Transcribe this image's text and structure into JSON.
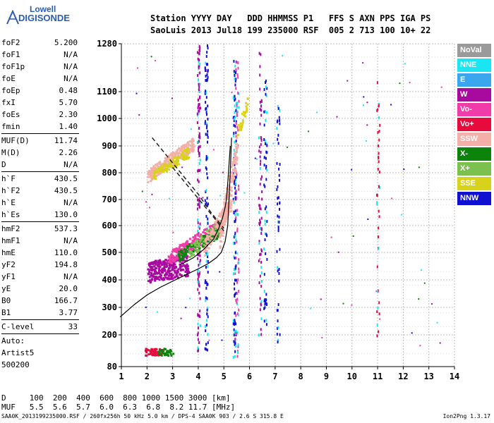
{
  "logo": {
    "top": "Lowell",
    "bottom": "DIGISONDE"
  },
  "header": {
    "line1": "Station YYYY DAY   DDD HHMMSS P1   FFS S AXN PPS IGA PS",
    "line2": "SaoLuis 2013 Jul18 199 235000 RSF  005 2 713 100 10+ 22"
  },
  "params": [
    {
      "k": "foF2",
      "v": "5.200"
    },
    {
      "k": "foF1",
      "v": "N/A"
    },
    {
      "k": "foF1p",
      "v": "N/A"
    },
    {
      "k": "foE",
      "v": "N/A"
    },
    {
      "k": "foEp",
      "v": "0.48"
    },
    {
      "k": "fxI",
      "v": "5.70"
    },
    {
      "k": "foEs",
      "v": "2.30"
    },
    {
      "k": "fmin",
      "v": "1.40"
    },
    {
      "sep": true
    },
    {
      "k": "MUF(D)",
      "v": "11.74"
    },
    {
      "k": "M(D)",
      "v": "2.26"
    },
    {
      "k": "D",
      "v": "N/A"
    },
    {
      "sep": true
    },
    {
      "k": "h`F",
      "v": "430.5"
    },
    {
      "k": "h`F2",
      "v": "430.5"
    },
    {
      "k": "h`E",
      "v": "N/A"
    },
    {
      "k": "h`Es",
      "v": "130.0"
    },
    {
      "sep": true
    },
    {
      "k": "hmF2",
      "v": "537.3"
    },
    {
      "k": "hmF1",
      "v": "N/A"
    },
    {
      "k": "hmE",
      "v": "110.0"
    },
    {
      "k": "yF2",
      "v": "194.8"
    },
    {
      "k": "yF1",
      "v": "N/A"
    },
    {
      "k": "yE",
      "v": "20.0"
    },
    {
      "k": "B0",
      "v": "166.7"
    },
    {
      "k": "B1",
      "v": "3.77"
    },
    {
      "sep": true
    },
    {
      "k": "C-level",
      "v": "33"
    },
    {
      "sep": true
    },
    {
      "text": "Auto:"
    },
    {
      "text": "Artist5"
    },
    {
      "text": "500200"
    }
  ],
  "legend": [
    {
      "label": "NoVal",
      "color": "#9a9a9a"
    },
    {
      "label": "NNE",
      "color": "#19e6f0"
    },
    {
      "label": "E",
      "color": "#3aa6ee"
    },
    {
      "label": "W",
      "color": "#a80aa0"
    },
    {
      "label": "Vo-",
      "color": "#f03ca8"
    },
    {
      "label": "Vo+",
      "color": "#e80a3c"
    },
    {
      "label": "SSW",
      "color": "#f4b0a8"
    },
    {
      "label": "X-",
      "color": "#0c840c"
    },
    {
      "label": "X+",
      "color": "#7cc050"
    },
    {
      "label": "SSE",
      "color": "#d8d21a"
    },
    {
      "label": "NNW",
      "color": "#1010d0"
    }
  ],
  "footer": {
    "line1": "D     100  200  400  600  800 1000 1500 3000 [km]",
    "line2": "MUF   5.5  5.6  5.7  6.0  6.3  6.8  8.2 11.7 [MHz]",
    "info": "SAA0K_2013199235000.RSF / 260fx256h 50 kHz 5.0 km / DPS-4 SAA0K 903 / 2.6 S 315.8 E",
    "version": "Ion2Png 1.3.17"
  },
  "chart_data": {
    "type": "scatter",
    "x_ticks": [
      "1",
      "2",
      "3",
      "4",
      "5",
      "6",
      "7",
      "8",
      "9",
      "10",
      "11",
      "12",
      "13",
      "14"
    ],
    "xlim": [
      1,
      14
    ],
    "y_ticks": [
      "80",
      "200",
      "300",
      "400",
      "500",
      "600",
      "700",
      "800",
      "900",
      "1000",
      "1100",
      "1280"
    ],
    "ylim": [
      80,
      1280
    ],
    "grid": true,
    "profile_curve": [
      [
        0.95,
        265
      ],
      [
        1.5,
        310
      ],
      [
        2.0,
        345
      ],
      [
        2.5,
        372
      ],
      [
        3.0,
        395
      ],
      [
        3.5,
        418
      ],
      [
        4.0,
        440
      ],
      [
        4.4,
        460
      ],
      [
        4.7,
        480
      ],
      [
        4.9,
        500
      ],
      [
        5.05,
        540
      ],
      [
        5.15,
        600
      ],
      [
        5.2,
        700
      ],
      [
        5.25,
        800
      ],
      [
        5.3,
        930
      ]
    ],
    "virtual_trace_x": [
      [
        3.3,
        455
      ],
      [
        3.8,
        480
      ],
      [
        4.2,
        510
      ],
      [
        4.6,
        550
      ],
      [
        4.8,
        590
      ],
      [
        4.95,
        630
      ],
      [
        5.05,
        670
      ],
      [
        5.1,
        700
      ],
      [
        5.15,
        760
      ],
      [
        5.2,
        830
      ],
      [
        5.25,
        900
      ]
    ],
    "dashed_upper": [
      [
        2.2,
        930
      ],
      [
        2.8,
        860
      ],
      [
        3.4,
        790
      ],
      [
        4.0,
        720
      ],
      [
        4.5,
        650
      ],
      [
        5.0,
        590
      ]
    ],
    "dashed_lower": [
      [
        3.0,
        820
      ],
      [
        3.6,
        750
      ],
      [
        4.2,
        680
      ],
      [
        4.7,
        620
      ],
      [
        5.0,
        580
      ]
    ],
    "clusters": [
      {
        "color": "#f4b0a8",
        "x": [
          2.0,
          3.8
        ],
        "y": [
          790,
          910
        ],
        "slope": 1,
        "n": 260
      },
      {
        "color": "#d8d21a",
        "x": [
          2.2,
          3.6
        ],
        "y": [
          790,
          880
        ],
        "slope": 1,
        "n": 110
      },
      {
        "color": "#a80aa0",
        "x": [
          2.0,
          3.6
        ],
        "y": [
          430,
          520
        ],
        "slope": 0.3,
        "n": 280
      },
      {
        "color": "#f03ca8",
        "x": [
          2.8,
          4.8
        ],
        "y": [
          480,
          600
        ],
        "slope": 1,
        "n": 240
      },
      {
        "color": "#0c840c",
        "x": [
          3.2,
          4.8
        ],
        "y": [
          490,
          580
        ],
        "slope": 1,
        "n": 130
      },
      {
        "color": "#7cc050",
        "x": [
          3.6,
          5.0
        ],
        "y": [
          500,
          620
        ],
        "slope": 1,
        "n": 90
      },
      {
        "color": "#f4b0a8",
        "x": [
          4.8,
          5.5
        ],
        "y": [
          560,
          900
        ],
        "slope": 1,
        "n": 160
      },
      {
        "color": "#f4b0a8",
        "x": [
          4.2,
          5.3
        ],
        "y": [
          520,
          700
        ],
        "slope": 1,
        "n": 120
      },
      {
        "color": "#d8d21a",
        "x": [
          5.5,
          5.9
        ],
        "y": [
          950,
          1060
        ],
        "slope": 1,
        "n": 30
      },
      {
        "color": "#e80a3c",
        "x": [
          1.9,
          2.6
        ],
        "y": [
          138,
          146
        ],
        "slope": 0,
        "n": 60
      },
      {
        "color": "#0c840c",
        "x": [
          2.4,
          3.0
        ],
        "y": [
          138,
          146
        ],
        "slope": 0,
        "n": 30
      }
    ],
    "vertical_streaks": [
      {
        "x": 4.0,
        "y": [
          140,
          1280
        ],
        "color": "#a80aa0",
        "n": 140
      },
      {
        "x": 4.3,
        "y": [
          140,
          1280
        ],
        "color": "#1010d0",
        "n": 110
      },
      {
        "x": 5.4,
        "y": [
          120,
          1250
        ],
        "color": "#1010d0",
        "n": 120
      },
      {
        "x": 5.5,
        "y": [
          120,
          1250
        ],
        "color": "#f03ca8",
        "n": 70
      },
      {
        "x": 6.4,
        "y": [
          200,
          1250
        ],
        "color": "#a80aa0",
        "n": 70
      },
      {
        "x": 6.6,
        "y": [
          200,
          1150
        ],
        "color": "#1010d0",
        "n": 60
      },
      {
        "x": 7.1,
        "y": [
          160,
          1100
        ],
        "color": "#1010d0",
        "n": 50
      },
      {
        "x": 11.0,
        "y": [
          200,
          1160
        ],
        "color": "#e80a3c",
        "n": 40
      }
    ]
  }
}
